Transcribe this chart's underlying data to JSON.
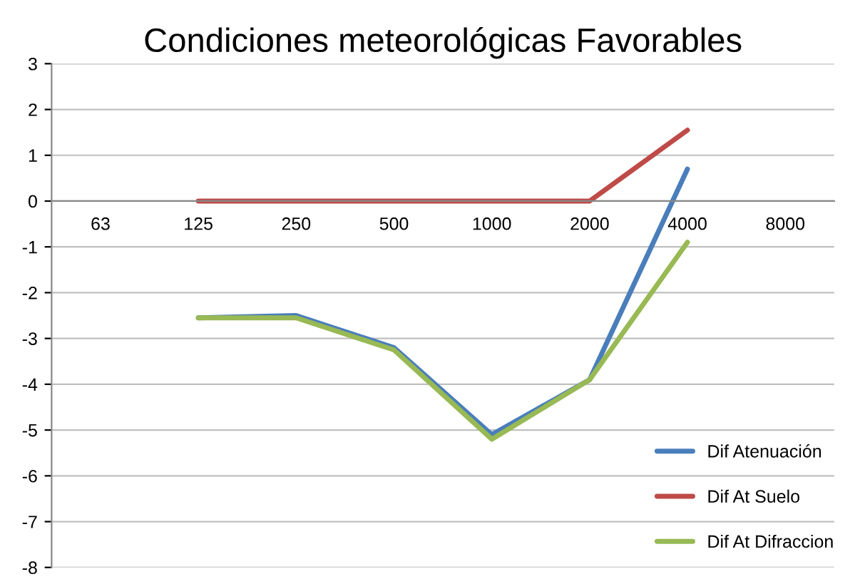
{
  "chart_data": {
    "type": "line",
    "title": "Condiciones meteorológicas Favorables",
    "categories": [
      "63",
      "125",
      "250",
      "500",
      "1000",
      "2000",
      "4000",
      "8000"
    ],
    "series": [
      {
        "name": "Dif Atenuación",
        "color": "#4a7ebb",
        "values": [
          null,
          -2.55,
          -2.5,
          -3.2,
          -5.1,
          -3.9,
          0.7,
          null
        ]
      },
      {
        "name": "Dif At Suelo",
        "color": "#be4b48",
        "values": [
          null,
          0,
          0,
          0,
          0,
          0,
          1.55,
          null
        ]
      },
      {
        "name": "Dif At Difraccion",
        "color": "#98b954",
        "values": [
          null,
          -2.55,
          -2.55,
          -3.25,
          -5.2,
          -3.9,
          -0.9,
          null
        ]
      }
    ],
    "ylim": [
      -8,
      3
    ],
    "yticks": [
      -8,
      -7,
      -6,
      -5,
      -4,
      -3,
      -2,
      -1,
      0,
      1,
      2,
      3
    ],
    "grid": "y",
    "legend": "bottom right",
    "marker": "none",
    "line_style": "solid"
  }
}
